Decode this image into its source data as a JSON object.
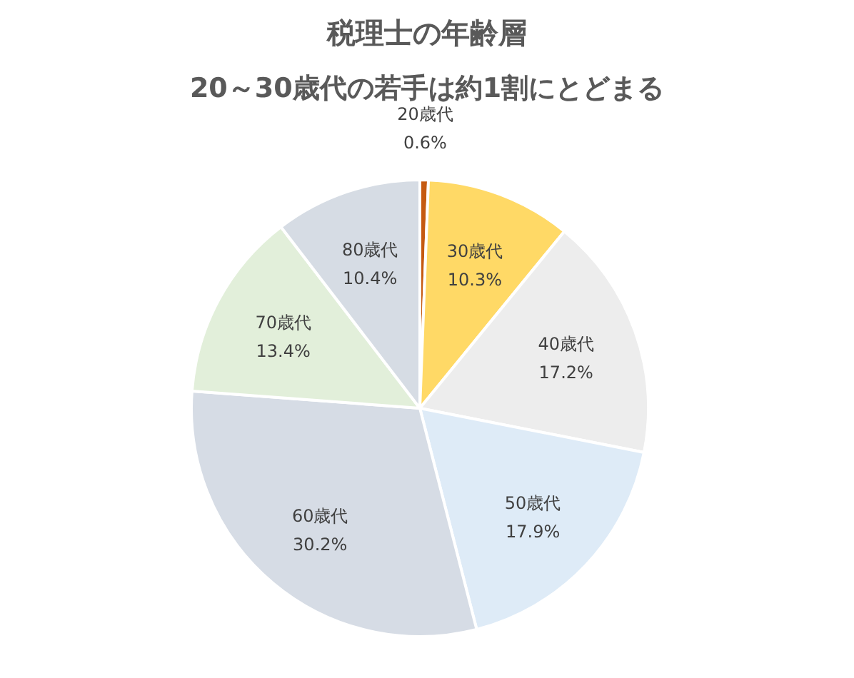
{
  "chart_data": {
    "type": "pie",
    "title": "税理士の年齢層",
    "subtitle": "20～30歳代の若手は約1割にとどまる",
    "categories": [
      "20歳代",
      "30歳代",
      "40歳代",
      "50歳代",
      "60歳代",
      "70歳代",
      "80歳代"
    ],
    "values": [
      0.6,
      10.3,
      17.2,
      17.9,
      30.2,
      13.4,
      10.4
    ],
    "colors": [
      "#c55a11",
      "#ffd966",
      "#ededed",
      "#deebf7",
      "#d6dce5",
      "#e2efda",
      "#d6dce4"
    ],
    "value_labels": [
      "0.6%",
      "10.3%",
      "17.2%",
      "17.9%",
      "30.2%",
      "13.4%",
      "10.4%"
    ]
  }
}
